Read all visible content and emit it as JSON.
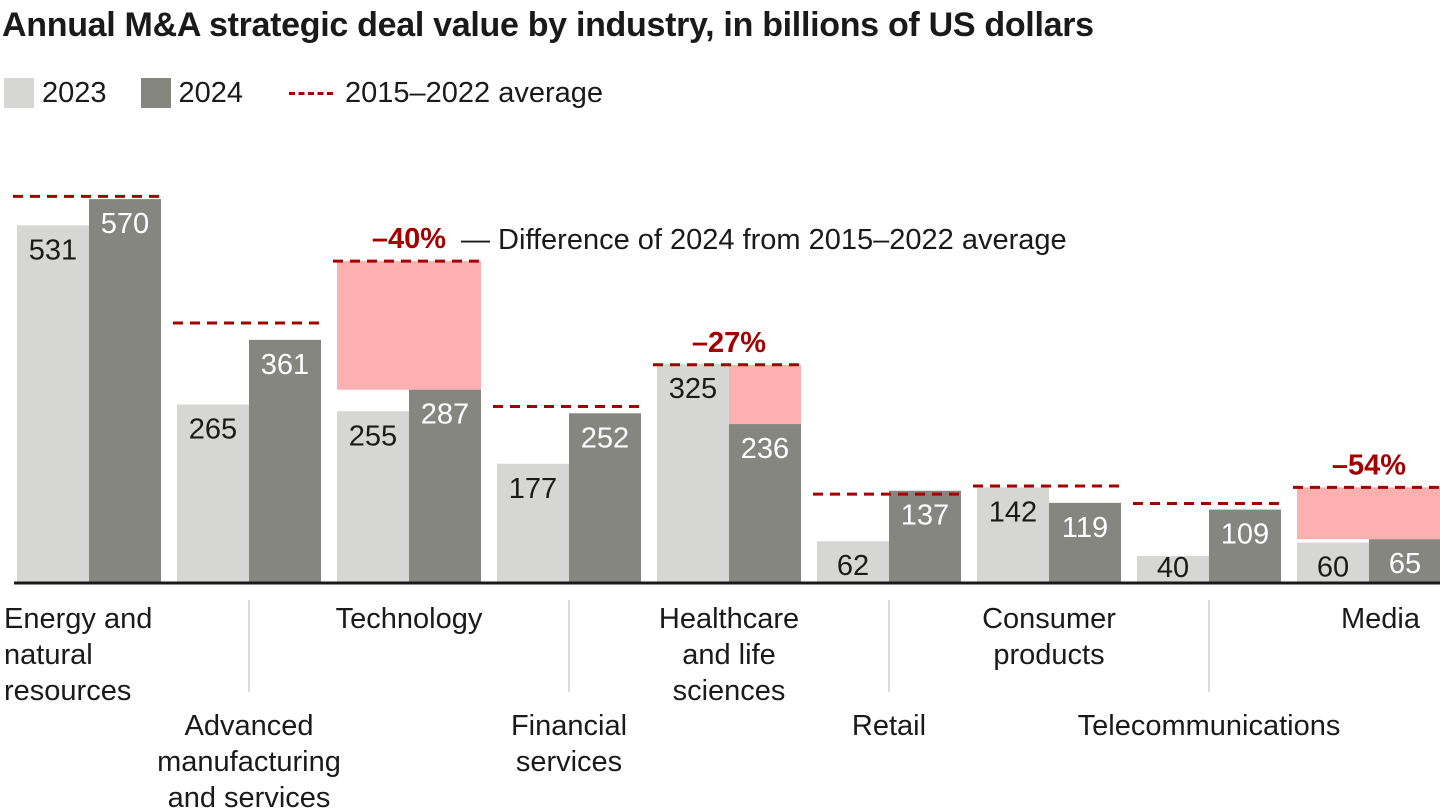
{
  "title": "Annual M&A strategic deal value by industry, in billions of US dollars",
  "legend": {
    "series_2023": "2023",
    "series_2024": "2024",
    "average": "2015–2022 average"
  },
  "colors": {
    "bar_2023": "#d6d6d4",
    "bar_2024": "#868681",
    "average_line": "#a50000",
    "difference_fill": "#fdb0b0",
    "difference_text": "#a50000"
  },
  "annotation_note": "— Difference of 2024 from 2015–2022 average",
  "chart_data": {
    "type": "bar",
    "title": "Annual M&A strategic deal value by industry, in billions of US dollars",
    "xlabel": "",
    "ylabel": "",
    "ylim": [
      0,
      660
    ],
    "grid": false,
    "legend_position": "top-left",
    "categories": [
      "Energy and natural resources",
      "Advanced manufacturing and services",
      "Technology",
      "Financial services",
      "Healthcare and life sciences",
      "Retail",
      "Consumer products",
      "Telecommunications",
      "Media"
    ],
    "category_lines": [
      [
        "Energy and",
        "natural",
        "resources"
      ],
      [
        "Advanced",
        "manufacturing",
        "and services"
      ],
      [
        "Technology"
      ],
      [
        "Financial",
        "services"
      ],
      [
        "Healthcare",
        "and life",
        "sciences"
      ],
      [
        "Retail"
      ],
      [
        "Consumer",
        "products"
      ],
      [
        "Telecommunications"
      ],
      [
        "Media"
      ]
    ],
    "series": [
      {
        "name": "2023",
        "values": [
          531,
          265,
          255,
          177,
          325,
          62,
          142,
          40,
          60
        ]
      },
      {
        "name": "2024",
        "values": [
          570,
          361,
          287,
          252,
          236,
          137,
          119,
          109,
          65
        ]
      },
      {
        "name": "2015–2022 average",
        "values": [
          574,
          386,
          478,
          262,
          324,
          132,
          144,
          118,
          142
        ]
      }
    ],
    "differences": [
      {
        "category": "Technology",
        "label": "–40%"
      },
      {
        "category": "Healthcare and life sciences",
        "label": "–27%"
      },
      {
        "category": "Media",
        "label": "–54%"
      }
    ]
  }
}
